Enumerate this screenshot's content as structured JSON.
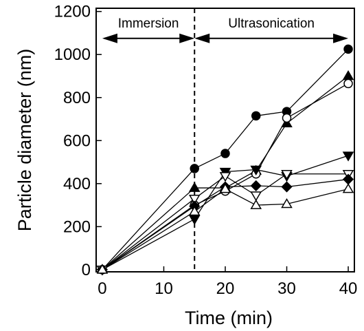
{
  "chart_data": {
    "type": "scatter",
    "title": "",
    "xlabel": "Time (min)",
    "ylabel": "Particle diameter (nm)",
    "xlim": [
      -1,
      41
    ],
    "ylim": [
      -10,
      1215
    ],
    "xticks": [
      0,
      10,
      20,
      30,
      40
    ],
    "yticks": [
      0,
      200,
      400,
      600,
      800,
      1000,
      1200
    ],
    "grid": false,
    "legend": "none",
    "annotations": {
      "immersion": {
        "label": "Immersion",
        "x_start": 0,
        "x_end": 15,
        "y": 1075
      },
      "ultrasonication": {
        "label": "Ultrasonication",
        "x_start": 15,
        "x_end": 40,
        "y": 1075
      },
      "divider_x": 15
    },
    "series": [
      {
        "marker": "circle-filled",
        "x": [
          0,
          15,
          20,
          25,
          30,
          40
        ],
        "y": [
          0,
          470,
          540,
          715,
          735,
          1025
        ]
      },
      {
        "marker": "triangle-up-filled",
        "x": [
          0,
          15,
          20,
          25,
          30,
          40
        ],
        "y": [
          0,
          380,
          380,
          460,
          680,
          900
        ]
      },
      {
        "marker": "circle-open",
        "x": [
          0,
          15,
          20,
          25,
          30,
          40
        ],
        "y": [
          0,
          300,
          365,
          445,
          705,
          865
        ]
      },
      {
        "marker": "triangle-down-filled",
        "x": [
          0,
          15,
          20,
          25,
          30,
          40
        ],
        "y": [
          0,
          235,
          455,
          465,
          435,
          530
        ]
      },
      {
        "marker": "triangle-down-open",
        "x": [
          0,
          15,
          20,
          25,
          30,
          40
        ],
        "y": [
          0,
          330,
          435,
          345,
          445,
          445
        ]
      },
      {
        "marker": "diamond-filled",
        "x": [
          0,
          15,
          20,
          25,
          30,
          40
        ],
        "y": [
          0,
          295,
          385,
          390,
          385,
          420
        ]
      },
      {
        "marker": "triangle-up-open",
        "x": [
          0,
          15,
          20,
          25,
          30,
          40
        ],
        "y": [
          0,
          270,
          375,
          300,
          305,
          375
        ]
      }
    ]
  }
}
